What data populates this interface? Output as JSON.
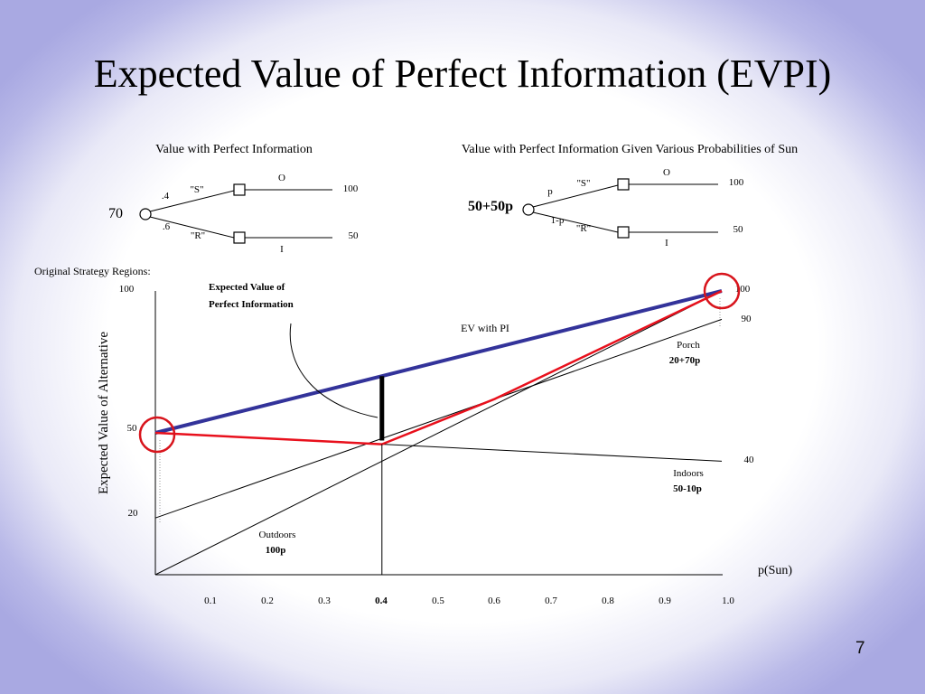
{
  "slide": {
    "title": "Expected Value of Perfect Information (EVPI)",
    "page_number": "7"
  },
  "tree_left": {
    "heading": "Value with Perfect Information",
    "root_value": "70",
    "upper": {
      "prob": ".4",
      "event": "\"S\"",
      "decision": "O",
      "payoff": "100"
    },
    "lower": {
      "prob": ".6",
      "event": "\"R\"",
      "decision": "I",
      "payoff": "50"
    }
  },
  "tree_right": {
    "heading": "Value with Perfect Information Given Various Probabilities of Sun",
    "root_value": "50+50p",
    "upper": {
      "prob": "p",
      "event": "\"S\"",
      "decision": "O",
      "payoff": "100"
    },
    "lower": {
      "prob": "1-p",
      "event": "\"R\"",
      "decision": "I",
      "payoff": "50"
    }
  },
  "regions_label": "Original Strategy Regions:",
  "chart": {
    "ylabel": "Expected Value of Alternative",
    "xlabel": "p(Sun)",
    "y_tick_labels": [
      "100",
      "50",
      "20"
    ],
    "x_tick_labels": [
      "0.1",
      "0.2",
      "0.3",
      "0.4",
      "0.5",
      "0.6",
      "0.7",
      "0.8",
      "0.9",
      "1.0"
    ],
    "right_value_labels": [
      "100",
      "90",
      "40"
    ],
    "annotation_line1": "Expected Value of",
    "annotation_line2": "Perfect Information",
    "ev_pi_label": "EV with PI",
    "porch_name": "Porch",
    "porch_formula": "20+70p",
    "indoors_name": "Indoors",
    "indoors_formula": "50-10p",
    "outdoors_name": "Outdoors",
    "outdoors_formula": "100p",
    "colors": {
      "ev_pi": "#33339a",
      "best_original": "#e8101c",
      "highlight_circle": "#d8141c",
      "evpi_bar": "#000000"
    }
  },
  "chart_data": {
    "type": "line",
    "xlabel": "p(Sun)",
    "ylabel": "Expected Value of Alternative",
    "xlim": [
      0,
      1
    ],
    "x_ticks": [
      0.1,
      0.2,
      0.3,
      0.4,
      0.5,
      0.6,
      0.7,
      0.8,
      0.9,
      1.0
    ],
    "series": [
      {
        "name": "Outdoors",
        "formula": "100p",
        "x": [
          0,
          1
        ],
        "y": [
          0,
          100
        ]
      },
      {
        "name": "Porch",
        "formula": "20+70p",
        "x": [
          0,
          1
        ],
        "y": [
          20,
          90
        ]
      },
      {
        "name": "Indoors",
        "formula": "50-10p",
        "x": [
          0,
          1
        ],
        "y": [
          50,
          40
        ]
      },
      {
        "name": "EV with PI",
        "formula": "50+50p",
        "x": [
          0,
          1
        ],
        "y": [
          50,
          100
        ]
      },
      {
        "name": "",
        "x": [
          0,
          0.4,
          0.6,
          1
        ],
        "y": [
          50,
          46,
          62,
          100
        ]
      }
    ],
    "evpi_marker": {
      "x": 0.4,
      "y_low": 46,
      "y_high": 70
    }
  }
}
